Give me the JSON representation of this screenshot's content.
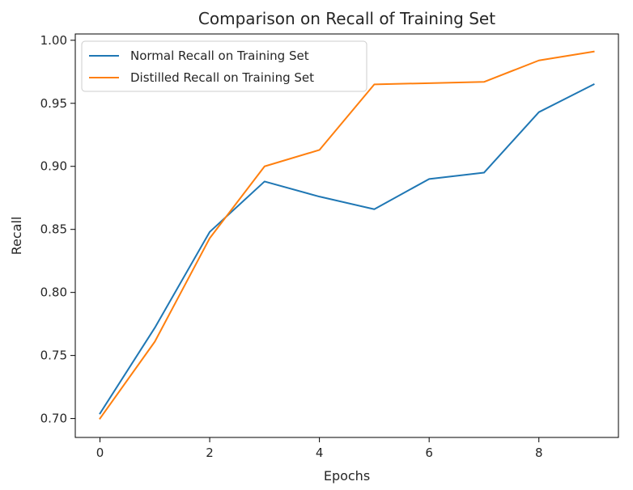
{
  "chart_data": {
    "type": "line",
    "title": "Comparison on Recall of Training Set",
    "xlabel": "Epochs",
    "ylabel": "Recall",
    "xlim": [
      -0.45,
      9.45
    ],
    "ylim": [
      0.685,
      1.005
    ],
    "xticks": [
      0,
      2,
      4,
      6,
      8
    ],
    "xtick_labels": [
      "0",
      "2",
      "4",
      "6",
      "8"
    ],
    "yticks": [
      0.7,
      0.75,
      0.8,
      0.85,
      0.9,
      0.95,
      1.0
    ],
    "ytick_labels": [
      "0.70",
      "0.75",
      "0.80",
      "0.85",
      "0.90",
      "0.95",
      "1.00"
    ],
    "grid": false,
    "legend_position": "top-left",
    "x": [
      0,
      1,
      2,
      3,
      4,
      5,
      6,
      7,
      8,
      9
    ],
    "series": [
      {
        "name": "Normal Recall on Training Set",
        "color": "#1f77b4",
        "values": [
          0.704,
          0.772,
          0.848,
          0.888,
          0.876,
          0.866,
          0.89,
          0.895,
          0.943,
          0.965
        ]
      },
      {
        "name": "Distilled Recall on Training Set",
        "color": "#ff7f0e",
        "values": [
          0.7,
          0.761,
          0.843,
          0.9,
          0.913,
          0.965,
          0.966,
          0.967,
          0.984,
          0.991
        ]
      }
    ]
  }
}
